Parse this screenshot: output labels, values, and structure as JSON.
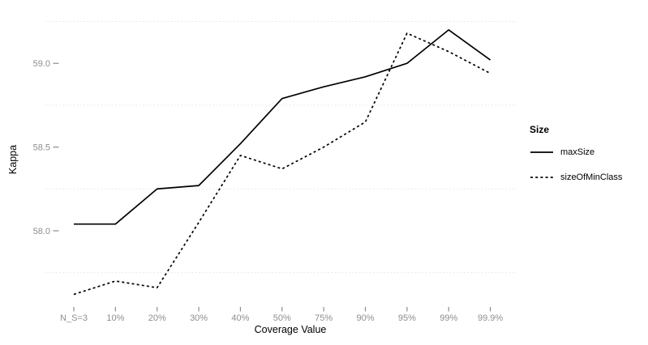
{
  "chart_data": {
    "type": "line",
    "title": "",
    "xlabel": "Coverage Value",
    "ylabel": "Kappa",
    "categories": [
      "N_S=3",
      "10%",
      "20%",
      "30%",
      "40%",
      "50%",
      "75%",
      "90%",
      "95%",
      "99%",
      "99.9%"
    ],
    "series": [
      {
        "name": "maxSize",
        "style": "solid",
        "color": "#000000",
        "values": [
          58.04,
          58.04,
          58.25,
          58.27,
          58.52,
          58.79,
          58.86,
          58.92,
          59.0,
          59.2,
          59.02
        ]
      },
      {
        "name": "sizeOfMinClass",
        "style": "dashed",
        "color": "#000000",
        "values": [
          57.62,
          57.7,
          57.66,
          58.05,
          58.45,
          58.37,
          58.5,
          58.65,
          59.18,
          59.07,
          58.94
        ]
      }
    ],
    "y_ticks": [
      58.0,
      58.5,
      59.0
    ],
    "y_tick_labels": [
      "58.0",
      "58.5",
      "59.0"
    ],
    "y_minor_gridlines": [
      57.75,
      58.25,
      58.75,
      59.25
    ],
    "ylim": [
      57.55,
      59.33
    ],
    "grid": "minor-horizontal-dotted",
    "legend_position": "right",
    "legend_title": "Size"
  },
  "colors": {
    "background": "#ffffff",
    "series": "#000000",
    "gridline": "#e3e3e3",
    "tick": "#8c8c8c",
    "tick_label": "#8e8e8e",
    "axis_title": "#000000",
    "legend_text": "#000000"
  }
}
